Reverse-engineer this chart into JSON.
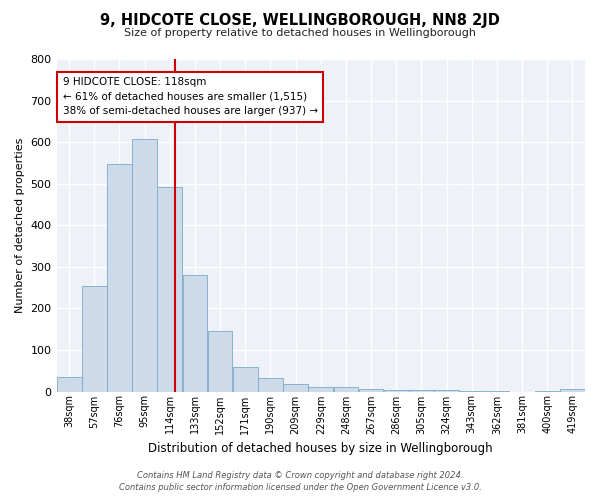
{
  "title": "9, HIDCOTE CLOSE, WELLINGBOROUGH, NN8 2JD",
  "subtitle": "Size of property relative to detached houses in Wellingborough",
  "xlabel": "Distribution of detached houses by size in Wellingborough",
  "ylabel": "Number of detached properties",
  "bar_color": "#ccdaea",
  "bar_edge_color": "#7aaac8",
  "background_color": "#ffffff",
  "plot_bg_color": "#eef2f8",
  "grid_color": "#ffffff",
  "redline_x": 118,
  "annotation_title": "9 HIDCOTE CLOSE: 118sqm",
  "annotation_line1": "← 61% of detached houses are smaller (1,515)",
  "annotation_line2": "38% of semi-detached houses are larger (937) →",
  "annotation_box_color": "#ffffff",
  "annotation_box_edge": "#cc0000",
  "footer_line1": "Contains HM Land Registry data © Crown copyright and database right 2024.",
  "footer_line2": "Contains public sector information licensed under the Open Government Licence v3.0.",
  "bin_edges": [
    28.5,
    47.5,
    66.5,
    85.5,
    104.5,
    123.5,
    142.5,
    161.5,
    180.5,
    199.5,
    218.5,
    237.5,
    256.5,
    275.5,
    294.5,
    313.5,
    332.5,
    351.5,
    370.5,
    389.5,
    408.5,
    427.5
  ],
  "bin_labels": [
    "38sqm",
    "57sqm",
    "76sqm",
    "95sqm",
    "114sqm",
    "133sqm",
    "152sqm",
    "171sqm",
    "190sqm",
    "209sqm",
    "229sqm",
    "248sqm",
    "267sqm",
    "286sqm",
    "305sqm",
    "324sqm",
    "343sqm",
    "362sqm",
    "381sqm",
    "400sqm",
    "419sqm"
  ],
  "counts": [
    35,
    253,
    548,
    607,
    493,
    280,
    145,
    60,
    32,
    18,
    12,
    10,
    5,
    4,
    4,
    3,
    2,
    1,
    0,
    1,
    5
  ],
  "ylim": [
    0,
    800
  ],
  "yticks": [
    0,
    100,
    200,
    300,
    400,
    500,
    600,
    700,
    800
  ]
}
